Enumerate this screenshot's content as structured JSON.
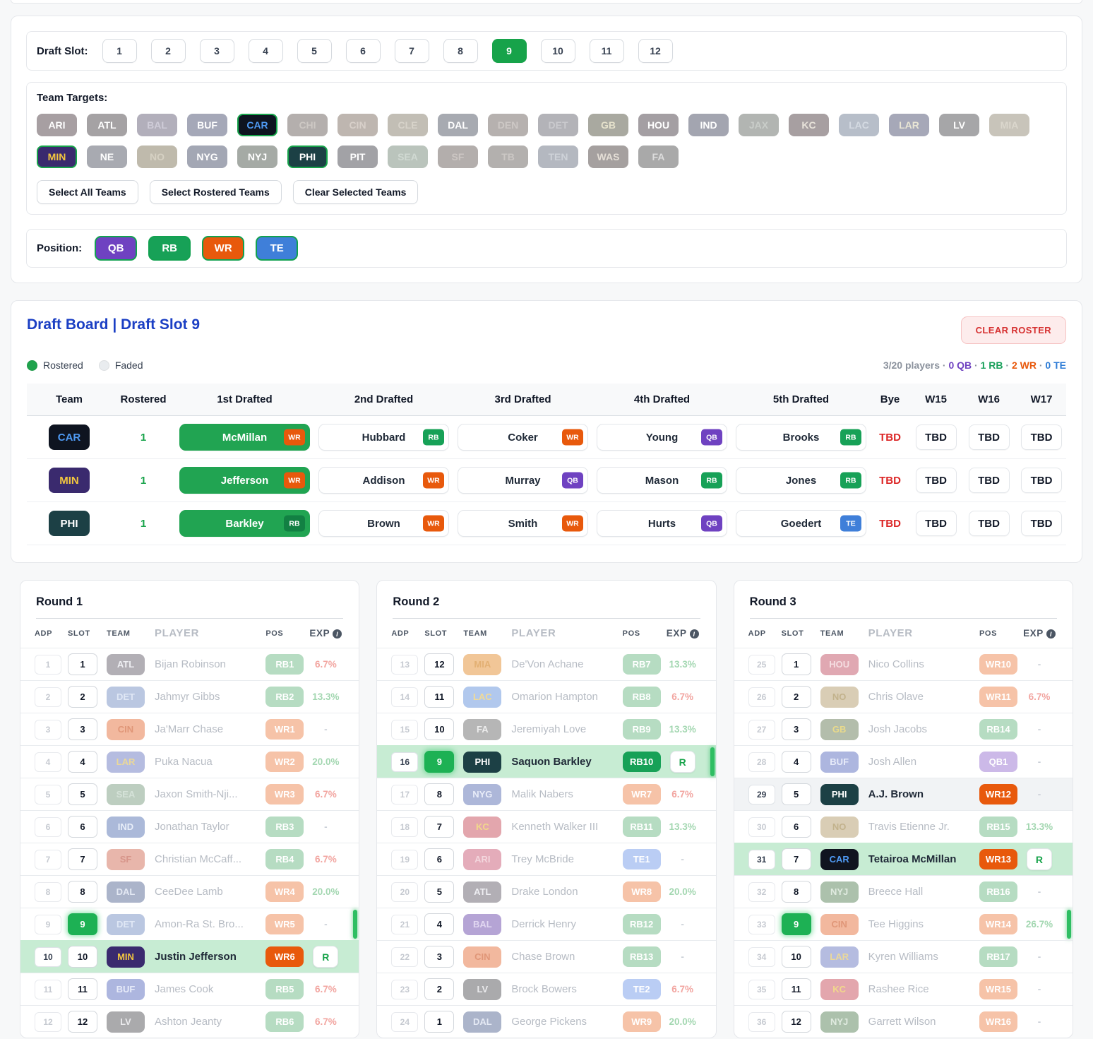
{
  "filters": {
    "draft_slot_label": "Draft Slot:",
    "slots": [
      "1",
      "2",
      "3",
      "4",
      "5",
      "6",
      "7",
      "8",
      "9",
      "10",
      "11",
      "12"
    ],
    "selected_slot": "9",
    "team_targets_label": "Team Targets:",
    "team_rows": [
      [
        "ARI",
        "ATL",
        "BAL",
        "BUF",
        "CAR",
        "CHI",
        "CIN",
        "CLE",
        "DAL",
        "DEN",
        "DET",
        "GB",
        "HOU",
        "IND",
        "JAX",
        "KC",
        "LAC",
        "LAR",
        "LV",
        "MIA"
      ],
      [
        "MIN",
        "NE",
        "NO",
        "NYG",
        "NYJ",
        "PHI",
        "PIT",
        "SEA",
        "SF",
        "TB",
        "TEN",
        "WAS",
        "FA"
      ]
    ],
    "selected_teams": [
      "CAR",
      "MIN",
      "PHI"
    ],
    "action_buttons": [
      "Select All Teams",
      "Select Rostered Teams",
      "Clear Selected Teams"
    ],
    "position_label": "Position:",
    "positions": [
      "QB",
      "RB",
      "WR",
      "TE"
    ]
  },
  "board": {
    "title": "Draft Board | Draft Slot 9",
    "clear_button": "CLEAR ROSTER",
    "legend": [
      {
        "label": "Rostered",
        "swatch": "#1fa34d"
      },
      {
        "label": "Faded",
        "swatch": "#e9ecef"
      }
    ],
    "summary": [
      {
        "text": "3/20 players",
        "color": "#8b929d"
      },
      {
        "text": "0 QB",
        "color": "#6f42c1"
      },
      {
        "text": "1 RB",
        "color": "#18a05a"
      },
      {
        "text": "2 WR",
        "color": "#e8590c"
      },
      {
        "text": "0 TE",
        "color": "#2e7cd6"
      }
    ],
    "columns": [
      "Team",
      "Rostered",
      "1st Drafted",
      "2nd Drafted",
      "3rd Drafted",
      "4th Drafted",
      "5th Drafted",
      "Bye",
      "W15",
      "W16",
      "W17"
    ],
    "rows": [
      {
        "team": "CAR",
        "rostered": "1",
        "picks": [
          {
            "name": "McMillan",
            "pos": "WR",
            "rostered": true
          },
          {
            "name": "Hubbard",
            "pos": "RB"
          },
          {
            "name": "Coker",
            "pos": "WR"
          },
          {
            "name": "Young",
            "pos": "QB"
          },
          {
            "name": "Brooks",
            "pos": "RB"
          }
        ],
        "bye": "TBD",
        "weeks": [
          "TBD",
          "TBD",
          "TBD"
        ]
      },
      {
        "team": "MIN",
        "rostered": "1",
        "picks": [
          {
            "name": "Jefferson",
            "pos": "WR",
            "rostered": true
          },
          {
            "name": "Addison",
            "pos": "WR"
          },
          {
            "name": "Murray",
            "pos": "QB"
          },
          {
            "name": "Mason",
            "pos": "RB"
          },
          {
            "name": "Jones",
            "pos": "RB"
          }
        ],
        "bye": "TBD",
        "weeks": [
          "TBD",
          "TBD",
          "TBD"
        ]
      },
      {
        "team": "PHI",
        "rostered": "1",
        "picks": [
          {
            "name": "Barkley",
            "pos": "RB",
            "rostered": true
          },
          {
            "name": "Brown",
            "pos": "WR"
          },
          {
            "name": "Smith",
            "pos": "WR"
          },
          {
            "name": "Hurts",
            "pos": "QB"
          },
          {
            "name": "Goedert",
            "pos": "TE"
          }
        ],
        "bye": "TBD",
        "weeks": [
          "TBD",
          "TBD",
          "TBD"
        ]
      }
    ]
  },
  "round_columns": [
    "ADP",
    "SLOT",
    "TEAM",
    "PLAYER",
    "POS",
    "EXP"
  ],
  "rounds": [
    {
      "title": "Round 1",
      "rows": [
        {
          "adp": "1",
          "slot": "1",
          "team": "ATL",
          "player": "Bijan Robinson",
          "pos": "RB1",
          "exp": "6.7%",
          "tone": "red",
          "state": "faded"
        },
        {
          "adp": "2",
          "slot": "2",
          "team": "DET",
          "player": "Jahmyr Gibbs",
          "pos": "RB2",
          "exp": "13.3%",
          "tone": "green",
          "state": "faded"
        },
        {
          "adp": "3",
          "slot": "3",
          "team": "CIN",
          "player": "Ja'Marr Chase",
          "pos": "WR1",
          "exp": "-",
          "tone": "gray",
          "state": "faded"
        },
        {
          "adp": "4",
          "slot": "4",
          "team": "LAR",
          "player": "Puka Nacua",
          "pos": "WR2",
          "exp": "20.0%",
          "tone": "green",
          "state": "faded"
        },
        {
          "adp": "5",
          "slot": "5",
          "team": "SEA",
          "player": "Jaxon Smith-Nji...",
          "pos": "WR3",
          "exp": "6.7%",
          "tone": "red",
          "state": "faded"
        },
        {
          "adp": "6",
          "slot": "6",
          "team": "IND",
          "player": "Jonathan Taylor",
          "pos": "RB3",
          "exp": "-",
          "tone": "gray",
          "state": "faded"
        },
        {
          "adp": "7",
          "slot": "7",
          "team": "SF",
          "player": "Christian McCaff...",
          "pos": "RB4",
          "exp": "6.7%",
          "tone": "red",
          "state": "faded"
        },
        {
          "adp": "8",
          "slot": "8",
          "team": "DAL",
          "player": "CeeDee Lamb",
          "pos": "WR4",
          "exp": "20.0%",
          "tone": "green",
          "state": "faded"
        },
        {
          "adp": "9",
          "slot": "9",
          "team": "DET",
          "player": "Amon-Ra St. Bro...",
          "pos": "WR5",
          "exp": "-",
          "tone": "gray",
          "state": "faded",
          "slot9": true
        },
        {
          "adp": "10",
          "slot": "10",
          "team": "MIN",
          "player": "Justin Jefferson",
          "pos": "WR6",
          "r": true,
          "state": "rostered"
        },
        {
          "adp": "11",
          "slot": "11",
          "team": "BUF",
          "player": "James Cook",
          "pos": "RB5",
          "exp": "6.7%",
          "tone": "red",
          "state": "faded"
        },
        {
          "adp": "12",
          "slot": "12",
          "team": "LV",
          "player": "Ashton Jeanty",
          "pos": "RB6",
          "exp": "6.7%",
          "tone": "red",
          "state": "faded"
        }
      ]
    },
    {
      "title": "Round 2",
      "rows": [
        {
          "adp": "13",
          "slot": "12",
          "team": "MIA",
          "player": "De'Von Achane",
          "pos": "RB7",
          "exp": "13.3%",
          "tone": "green",
          "state": "faded"
        },
        {
          "adp": "14",
          "slot": "11",
          "team": "LAC",
          "player": "Omarion Hampton",
          "pos": "RB8",
          "exp": "6.7%",
          "tone": "red",
          "state": "faded"
        },
        {
          "adp": "15",
          "slot": "10",
          "team": "FA",
          "player": "Jeremiyah Love",
          "pos": "RB9",
          "exp": "13.3%",
          "tone": "green",
          "state": "faded"
        },
        {
          "adp": "16",
          "slot": "9",
          "team": "PHI",
          "player": "Saquon Barkley",
          "pos": "RB10",
          "r": true,
          "state": "rostered",
          "slot9": true
        },
        {
          "adp": "17",
          "slot": "8",
          "team": "NYG",
          "player": "Malik Nabers",
          "pos": "WR7",
          "exp": "6.7%",
          "tone": "red",
          "state": "faded"
        },
        {
          "adp": "18",
          "slot": "7",
          "team": "KC",
          "player": "Kenneth Walker III",
          "pos": "RB11",
          "exp": "13.3%",
          "tone": "green",
          "state": "faded"
        },
        {
          "adp": "19",
          "slot": "6",
          "team": "ARI",
          "player": "Trey McBride",
          "pos": "TE1",
          "exp": "-",
          "tone": "gray",
          "state": "faded"
        },
        {
          "adp": "20",
          "slot": "5",
          "team": "ATL",
          "player": "Drake London",
          "pos": "WR8",
          "exp": "20.0%",
          "tone": "green",
          "state": "faded"
        },
        {
          "adp": "21",
          "slot": "4",
          "team": "BAL",
          "player": "Derrick Henry",
          "pos": "RB12",
          "exp": "-",
          "tone": "gray",
          "state": "faded"
        },
        {
          "adp": "22",
          "slot": "3",
          "team": "CIN",
          "player": "Chase Brown",
          "pos": "RB13",
          "exp": "-",
          "tone": "gray",
          "state": "faded"
        },
        {
          "adp": "23",
          "slot": "2",
          "team": "LV",
          "player": "Brock Bowers",
          "pos": "TE2",
          "exp": "6.7%",
          "tone": "red",
          "state": "faded"
        },
        {
          "adp": "24",
          "slot": "1",
          "team": "DAL",
          "player": "George Pickens",
          "pos": "WR9",
          "exp": "20.0%",
          "tone": "green",
          "state": "faded"
        }
      ]
    },
    {
      "title": "Round 3",
      "rows": [
        {
          "adp": "25",
          "slot": "1",
          "team": "HOU",
          "player": "Nico Collins",
          "pos": "WR10",
          "exp": "-",
          "tone": "gray",
          "state": "faded"
        },
        {
          "adp": "26",
          "slot": "2",
          "team": "NO",
          "player": "Chris Olave",
          "pos": "WR11",
          "exp": "6.7%",
          "tone": "red",
          "state": "faded"
        },
        {
          "adp": "27",
          "slot": "3",
          "team": "GB",
          "player": "Josh Jacobs",
          "pos": "RB14",
          "exp": "-",
          "tone": "gray",
          "state": "faded"
        },
        {
          "adp": "28",
          "slot": "4",
          "team": "BUF",
          "player": "Josh Allen",
          "pos": "QB1",
          "exp": "-",
          "tone": "gray",
          "state": "faded"
        },
        {
          "adp": "29",
          "slot": "5",
          "team": "PHI",
          "player": "A.J. Brown",
          "pos": "WR12",
          "exp": "-",
          "tone": "gray",
          "state": "target"
        },
        {
          "adp": "30",
          "slot": "6",
          "team": "NO",
          "player": "Travis Etienne Jr.",
          "pos": "RB15",
          "exp": "13.3%",
          "tone": "green",
          "state": "faded"
        },
        {
          "adp": "31",
          "slot": "7",
          "team": "CAR",
          "player": "Tetairoa McMillan",
          "pos": "WR13",
          "r": true,
          "state": "rostered"
        },
        {
          "adp": "32",
          "slot": "8",
          "team": "NYJ",
          "player": "Breece Hall",
          "pos": "RB16",
          "exp": "-",
          "tone": "gray",
          "state": "faded"
        },
        {
          "adp": "33",
          "slot": "9",
          "team": "CIN",
          "player": "Tee Higgins",
          "pos": "WR14",
          "exp": "26.7%",
          "tone": "green",
          "state": "faded",
          "slot9": true
        },
        {
          "adp": "34",
          "slot": "10",
          "team": "LAR",
          "player": "Kyren Williams",
          "pos": "RB17",
          "exp": "-",
          "tone": "gray",
          "state": "faded"
        },
        {
          "adp": "35",
          "slot": "11",
          "team": "KC",
          "player": "Rashee Rice",
          "pos": "WR15",
          "exp": "-",
          "tone": "gray",
          "state": "faded"
        },
        {
          "adp": "36",
          "slot": "12",
          "team": "NYJ",
          "player": "Garrett Wilson",
          "pos": "WR16",
          "exp": "-",
          "tone": "gray",
          "state": "faded"
        }
      ]
    }
  ],
  "styles": {
    "accent_green": "#17a34a",
    "team_buttons": {
      "ARI": {
        "bg": "#a79fa2",
        "fg": "#ffffff"
      },
      "ATL": {
        "bg": "#a5a2a4",
        "fg": "#ffffff"
      },
      "BAL": {
        "bg": "#b2afbb",
        "fg": "#cfccd8"
      },
      "BUF": {
        "bg": "#a5a8b8",
        "fg": "#ffffff"
      },
      "CAR": {
        "bg": "#0e1420",
        "fg": "#4f9bf5",
        "sel": true
      },
      "CHI": {
        "bg": "#b4afad",
        "fg": "#cdc8c4"
      },
      "CIN": {
        "bg": "#beb6b0",
        "fg": "#d8d0ca"
      },
      "CLE": {
        "bg": "#c2beb5",
        "fg": "#d7d3ca"
      },
      "DAL": {
        "bg": "#a7aab1",
        "fg": "#ffffff"
      },
      "DEN": {
        "bg": "#b6b1af",
        "fg": "#cdc8c5"
      },
      "DET": {
        "bg": "#b3b3b8",
        "fg": "#cacace"
      },
      "GB": {
        "bg": "#a9a9a0",
        "fg": "#e6e2cc"
      },
      "HOU": {
        "bg": "#a49fa3",
        "fg": "#ffffff"
      },
      "IND": {
        "bg": "#a3a5b0",
        "fg": "#ffffff"
      },
      "JAX": {
        "bg": "#b2b5b2",
        "fg": "#c9cdc9"
      },
      "KC": {
        "bg": "#a79fa1",
        "fg": "#e8e3da"
      },
      "LAC": {
        "bg": "#b7bec9",
        "fg": "#d4dae2"
      },
      "LAR": {
        "bg": "#a6a8b8",
        "fg": "#e9e6d5"
      },
      "LV": {
        "bg": "#a6a6a8",
        "fg": "#ffffff"
      },
      "MIA": {
        "bg": "#c8c4ba",
        "fg": "#dbd7cd"
      },
      "MIN": {
        "bg": "#3a2a6e",
        "fg": "#f3c73f",
        "sel": true
      },
      "NE": {
        "bg": "#a8aab1",
        "fg": "#ffffff"
      },
      "NO": {
        "bg": "#bfbaac",
        "fg": "#d6d1c3"
      },
      "NYG": {
        "bg": "#a3a7b4",
        "fg": "#ffffff"
      },
      "NYJ": {
        "bg": "#a5aaa5",
        "fg": "#ffffff"
      },
      "PHI": {
        "bg": "#1c4045",
        "fg": "#ffffff",
        "sel": true
      },
      "PIT": {
        "bg": "#a2a2a6",
        "fg": "#ffffff"
      },
      "SEA": {
        "bg": "#bac4bc",
        "fg": "#d0d9d2"
      },
      "SF": {
        "bg": "#b3aeac",
        "fg": "#ccc6c3"
      },
      "TB": {
        "bg": "#b3b0ae",
        "fg": "#cbc7c4"
      },
      "TEN": {
        "bg": "#b4b8c0",
        "fg": "#ced2d8"
      },
      "WAS": {
        "bg": "#a5a09f",
        "fg": "#e4ded6"
      },
      "FA": {
        "bg": "#a9a9a9",
        "fg": "#dcdcdc"
      }
    },
    "board_badges": {
      "CAR": {
        "bg": "#0e1420",
        "fg": "#4f9bf5"
      },
      "MIN": {
        "bg": "#3a2a6e",
        "fg": "#f3c73f"
      },
      "PHI": {
        "bg": "#1c4045",
        "fg": "#ffffff"
      }
    },
    "team_pills": {
      "ATL": {
        "bg": "#b2afb5",
        "fg": "#eeeef2"
      },
      "DET": {
        "bg": "#bac7e1",
        "fg": "#dfe7f5"
      },
      "CIN": {
        "bg": "#f2b89e",
        "fg": "#e09678"
      },
      "LAR": {
        "bg": "#b5bce0",
        "fg": "#ead899"
      },
      "SEA": {
        "bg": "#bdcec0",
        "fg": "#d5e2d8"
      },
      "IND": {
        "bg": "#abb9d9",
        "fg": "#e8eef9"
      },
      "SF": {
        "bg": "#e8b6ab",
        "fg": "#d7958a"
      },
      "DAL": {
        "bg": "#abb4ca",
        "fg": "#e4e9f4"
      },
      "MIN": {
        "bg": "#3a2a6e",
        "fg": "#f3c73f"
      },
      "BUF": {
        "bg": "#adb6df",
        "fg": "#e7ebf9"
      },
      "LV": {
        "bg": "#aaaaac",
        "fg": "#eaeaec"
      },
      "MIA": {
        "bg": "#f1c697",
        "fg": "#e3b073"
      },
      "LAC": {
        "bg": "#b1c8ed",
        "fg": "#f0da97"
      },
      "FA": {
        "bg": "#b6b6b6",
        "fg": "#ededed"
      },
      "PHI": {
        "bg": "#1c4045",
        "fg": "#ffffff"
      },
      "NYG": {
        "bg": "#adb7d9",
        "fg": "#e8ecf8"
      },
      "KC": {
        "bg": "#e3a6ad",
        "fg": "#f1d88b"
      },
      "ARI": {
        "bg": "#e4acba",
        "fg": "#f3d6dd"
      },
      "BAL": {
        "bg": "#b5a4d5",
        "fg": "#e1d7f1"
      },
      "HOU": {
        "bg": "#e0a8b2",
        "fg": "#f5dde1"
      },
      "NO": {
        "bg": "#d9cdb5",
        "fg": "#c2b28c"
      },
      "GB": {
        "bg": "#b3bdab",
        "fg": "#e9da8b"
      },
      "CAR": {
        "bg": "#10141f",
        "fg": "#4f9bf5"
      },
      "NYJ": {
        "bg": "#acc1ac",
        "fg": "#e0ebe0"
      }
    },
    "pos_solid": {
      "QB": "#6f42c1",
      "RB": "#17a157",
      "WR": "#e8590c",
      "TE": "#3f7fd9"
    },
    "pos_solid_on_green": {
      "QB": "#6f42c1",
      "RB": "#128043",
      "WR": "#e8590c",
      "TE": "#3f7fd9"
    },
    "pos_faded": {
      "QB": "#ccb9e8",
      "RB": "#b6dcc2",
      "WR": "#f6c3a8",
      "TE": "#bacdf4"
    },
    "exp_colors": {
      "red": "#f2a5a0",
      "green": "#a3d7b1",
      "gray": "#c9ced6"
    }
  }
}
